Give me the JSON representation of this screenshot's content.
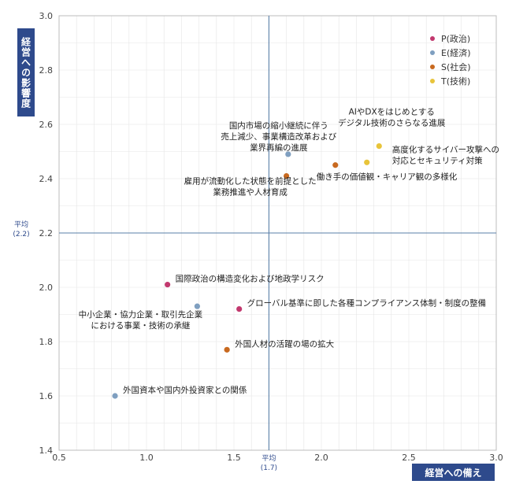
{
  "chart_data": {
    "type": "scatter",
    "xlabel": "経営への備え",
    "ylabel": "経営への影響度",
    "xlim": [
      0.5,
      3.0
    ],
    "ylim": [
      1.4,
      3.0
    ],
    "x_ticks": [
      "0.5",
      "1.0",
      "1.5",
      "2.0",
      "2.5",
      "3.0"
    ],
    "y_ticks": [
      "1.4",
      "1.6",
      "1.8",
      "2.0",
      "2.2",
      "2.4",
      "2.6",
      "2.8",
      "3.0"
    ],
    "x_mean": 1.7,
    "y_mean": 2.2,
    "x_mean_label": [
      "平均",
      "(1.7)"
    ],
    "y_mean_label": [
      "平均",
      "(2.2)"
    ],
    "grid": true,
    "legend_position": "top-right",
    "series": [
      {
        "name": "P(政治)",
        "color": "#c2386e"
      },
      {
        "name": "E(経済)",
        "color": "#7f9fc0"
      },
      {
        "name": "S(社会)",
        "color": "#c8691f"
      },
      {
        "name": "T(技術)",
        "color": "#e8c43a"
      }
    ],
    "points": [
      {
        "series": 0,
        "x": 1.12,
        "y": 2.01,
        "label": [
          "国際政治の構造変化および地政学リスク"
        ]
      },
      {
        "series": 0,
        "x": 1.53,
        "y": 1.92,
        "label": [
          "グローバル基準に即した各種コンプライアンス体制・制度の整備"
        ]
      },
      {
        "series": 1,
        "x": 1.81,
        "y": 2.49,
        "label": [
          "国内市場の縮小継続に伴う",
          "売上減少、事業構造改革および",
          "業界再編の進展"
        ]
      },
      {
        "series": 1,
        "x": 1.29,
        "y": 1.93,
        "label": [
          "中小企業・協力企業・取引先企業",
          "における事業・技術の承継"
        ]
      },
      {
        "series": 1,
        "x": 0.82,
        "y": 1.6,
        "label": [
          "外国資本や国内外投資家との関係"
        ]
      },
      {
        "series": 2,
        "x": 1.8,
        "y": 2.41,
        "label": [
          "雇用が流動化した状態を前提とした",
          "業務推進や人材育成"
        ]
      },
      {
        "series": 2,
        "x": 2.08,
        "y": 2.45,
        "label": [
          "働き手の価値観・キャリア観の多様化"
        ]
      },
      {
        "series": 2,
        "x": 1.46,
        "y": 1.77,
        "label": [
          "外国人材の活躍の場の拡大"
        ]
      },
      {
        "series": 3,
        "x": 2.33,
        "y": 2.52,
        "label": [
          "AIやDXをはじめとする",
          "デジタル技術のさらなる進展"
        ]
      },
      {
        "series": 3,
        "x": 2.26,
        "y": 2.46,
        "label": [
          "高度化するサイバー攻撃への",
          "対応とセキュリティ対策"
        ]
      }
    ]
  }
}
